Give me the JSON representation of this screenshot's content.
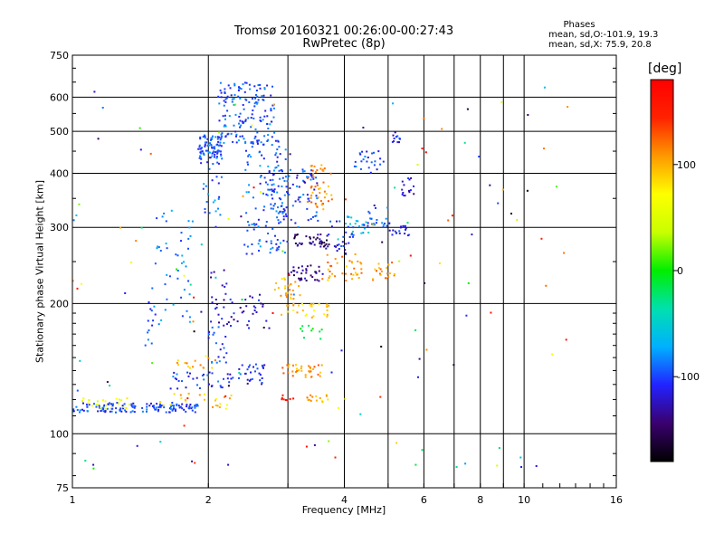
{
  "chart_data": {
    "type": "scatter",
    "title": "Tromsø 20160321 00:26:00-00:27:43",
    "subtitle": "RwPretec (8p)",
    "xlabel": "Frequency [MHz]",
    "ylabel": "Stationary phase Virtual Height [km]",
    "x_scale": "log",
    "y_scale": "log",
    "xlim": [
      1,
      16
    ],
    "ylim": [
      75,
      750
    ],
    "x_ticks": [
      1,
      2,
      4,
      6,
      8,
      10,
      16
    ],
    "x_minor_gridlines": [
      3,
      5,
      7,
      9
    ],
    "y_ticks": [
      75,
      100,
      200,
      300,
      400,
      500,
      600,
      750
    ],
    "y_minor_gridlines": [],
    "grid": true,
    "stats": {
      "heading": "Phases",
      "line1": "mean, sd,O:-101.9, 19.3",
      "line2": "mean, sd,X:  75.9, 20.8"
    },
    "colorbar": {
      "title": "[deg]",
      "range": [
        -180,
        180
      ],
      "ticks": [
        100,
        0,
        -100
      ],
      "colors": [
        "#000000",
        "#3a006e",
        "#2222ff",
        "#00b0ff",
        "#00e0b0",
        "#00ee00",
        "#c8ff00",
        "#ffff00",
        "#ff9900",
        "#ff2200",
        "#ff0000"
      ]
    },
    "clusters": [
      {
        "x": [
          1.0,
          1.9
        ],
        "y": [
          112,
          118
        ],
        "phase": -100,
        "n": 140
      },
      {
        "x": [
          1.05,
          1.35
        ],
        "y": [
          113,
          121
        ],
        "phase": 60,
        "n": 22
      },
      {
        "x": [
          1.55,
          2.25
        ],
        "y": [
          115,
          125
        ],
        "phase": 95,
        "n": 25
      },
      {
        "x": [
          1.5,
          1.85
        ],
        "y": [
          180,
          330
        ],
        "phase": -90,
        "n": 45
      },
      {
        "x": [
          1.45,
          1.55
        ],
        "y": [
          160,
          210
        ],
        "phase": -95,
        "n": 12
      },
      {
        "x": [
          1.65,
          2.2
        ],
        "y": [
          127,
          140
        ],
        "phase": -100,
        "n": 30
      },
      {
        "x": [
          1.7,
          2.1
        ],
        "y": [
          140,
          150
        ],
        "phase": 100,
        "n": 15
      },
      {
        "x": [
          1.9,
          2.15
        ],
        "y": [
          420,
          490
        ],
        "phase": -95,
        "n": 90
      },
      {
        "x": [
          1.95,
          2.15
        ],
        "y": [
          320,
          420
        ],
        "phase": -90,
        "n": 20
      },
      {
        "x": [
          2.0,
          2.2
        ],
        "y": [
          145,
          180
        ],
        "phase": -100,
        "n": 22
      },
      {
        "x": [
          2.0,
          2.2
        ],
        "y": [
          180,
          240
        ],
        "phase": -125,
        "n": 20
      },
      {
        "x": [
          2.1,
          2.8
        ],
        "y": [
          470,
          650
        ],
        "phase": -95,
        "n": 150
      },
      {
        "x": [
          2.2,
          2.7
        ],
        "y": [
          130,
          145
        ],
        "phase": -110,
        "n": 35
      },
      {
        "x": [
          2.2,
          2.7
        ],
        "y": [
          175,
          210
        ],
        "phase": -120,
        "n": 30
      },
      {
        "x": [
          2.4,
          3.0
        ],
        "y": [
          260,
          480
        ],
        "phase": -95,
        "n": 120
      },
      {
        "x": [
          2.7,
          3.5
        ],
        "y": [
          300,
          410
        ],
        "phase": -100,
        "n": 90
      },
      {
        "x": [
          2.9,
          3.6
        ],
        "y": [
          135,
          145
        ],
        "phase": 110,
        "n": 35
      },
      {
        "x": [
          2.9,
          3.7
        ],
        "y": [
          185,
          200
        ],
        "phase": 90,
        "n": 30
      },
      {
        "x": [
          2.8,
          3.2
        ],
        "y": [
          205,
          230
        ],
        "phase": 105,
        "n": 25
      },
      {
        "x": [
          3.0,
          3.6
        ],
        "y": [
          225,
          245
        ],
        "phase": -140,
        "n": 35
      },
      {
        "x": [
          3.1,
          3.7
        ],
        "y": [
          270,
          290
        ],
        "phase": -145,
        "n": 40
      },
      {
        "x": [
          3.3,
          3.8
        ],
        "y": [
          330,
          420
        ],
        "phase": 110,
        "n": 45
      },
      {
        "x": [
          3.3,
          3.7
        ],
        "y": [
          118,
          123
        ],
        "phase": 100,
        "n": 15
      },
      {
        "x": [
          2.9,
          3.1
        ],
        "y": [
          118,
          123
        ],
        "phase": 150,
        "n": 8
      },
      {
        "x": [
          3.2,
          3.6
        ],
        "y": [
          165,
          180
        ],
        "phase": -10,
        "n": 10
      },
      {
        "x": [
          3.6,
          4.4
        ],
        "y": [
          225,
          260
        ],
        "phase": 105,
        "n": 35
      },
      {
        "x": [
          3.6,
          4.2
        ],
        "y": [
          260,
          310
        ],
        "phase": -110,
        "n": 30
      },
      {
        "x": [
          4.0,
          4.6
        ],
        "y": [
          290,
          320
        ],
        "phase": -60,
        "n": 20
      },
      {
        "x": [
          4.2,
          4.9
        ],
        "y": [
          400,
          450
        ],
        "phase": -100,
        "n": 25
      },
      {
        "x": [
          4.4,
          5.0
        ],
        "y": [
          300,
          340
        ],
        "phase": -100,
        "n": 20
      },
      {
        "x": [
          4.6,
          5.2
        ],
        "y": [
          225,
          250
        ],
        "phase": 110,
        "n": 20
      },
      {
        "x": [
          5.0,
          5.6
        ],
        "y": [
          285,
          310
        ],
        "phase": -105,
        "n": 20
      },
      {
        "x": [
          5.1,
          5.4
        ],
        "y": [
          470,
          490
        ],
        "phase": -110,
        "n": 10
      },
      {
        "x": [
          5.3,
          5.7
        ],
        "y": [
          355,
          390
        ],
        "phase": -120,
        "n": 15
      },
      {
        "x": [
          1.0,
          12.5
        ],
        "y": [
          80,
          650
        ],
        "phase": 0,
        "n": 140,
        "scatter": true
      }
    ]
  }
}
